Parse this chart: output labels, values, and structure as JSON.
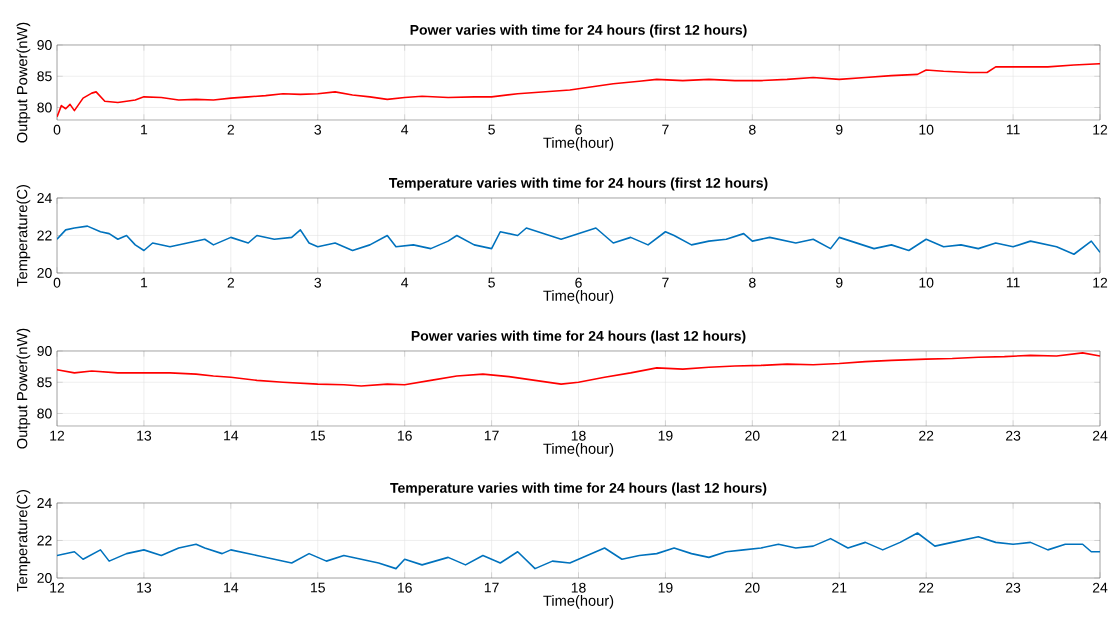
{
  "chart_data": [
    {
      "type": "line",
      "title": "Power varies with time for 24 hours (first 12 hours)",
      "xlabel": "Time(hour)",
      "ylabel": "Output Power(nW)",
      "xlim": [
        0,
        12
      ],
      "xticks": [
        0,
        1,
        2,
        3,
        4,
        5,
        6,
        7,
        8,
        9,
        10,
        11,
        12
      ],
      "ylim": [
        78,
        90
      ],
      "yticks": [
        80,
        85,
        90
      ],
      "grid": true,
      "series": [
        {
          "color": "#ff0000",
          "x": [
            0,
            0.05,
            0.1,
            0.15,
            0.2,
            0.3,
            0.4,
            0.45,
            0.55,
            0.7,
            0.9,
            1.0,
            1.2,
            1.4,
            1.6,
            1.8,
            2.0,
            2.2,
            2.4,
            2.6,
            2.8,
            3.0,
            3.2,
            3.4,
            3.6,
            3.8,
            4.0,
            4.2,
            4.5,
            4.8,
            5.0,
            5.3,
            5.6,
            5.9,
            6.1,
            6.4,
            6.7,
            6.9,
            7.2,
            7.5,
            7.8,
            8.1,
            8.4,
            8.7,
            9.0,
            9.3,
            9.6,
            9.9,
            10.0,
            10.2,
            10.5,
            10.7,
            10.8,
            11.1,
            11.4,
            11.7,
            12.0
          ],
          "values": [
            78.5,
            80.3,
            79.8,
            80.5,
            79.5,
            81.5,
            82.3,
            82.5,
            81,
            80.8,
            81.2,
            81.7,
            81.6,
            81.2,
            81.3,
            81.2,
            81.5,
            81.7,
            81.9,
            82.2,
            82.1,
            82.2,
            82.5,
            82.0,
            81.7,
            81.3,
            81.6,
            81.8,
            81.6,
            81.7,
            81.7,
            82.2,
            82.5,
            82.8,
            83.2,
            83.8,
            84.2,
            84.5,
            84.3,
            84.5,
            84.3,
            84.3,
            84.5,
            84.8,
            84.5,
            84.8,
            85.1,
            85.3,
            86.0,
            85.8,
            85.6,
            85.6,
            86.5,
            86.5,
            86.5,
            86.8,
            87.0
          ]
        }
      ]
    },
    {
      "type": "line",
      "title": "Temperature varies with time for 24 hours (first 12 hours)",
      "xlabel": "Time(hour)",
      "ylabel": "Temperature(C)",
      "xlim": [
        0,
        12
      ],
      "xticks": [
        0,
        1,
        2,
        3,
        4,
        5,
        6,
        7,
        8,
        9,
        10,
        11,
        12
      ],
      "ylim": [
        20,
        24
      ],
      "yticks": [
        20,
        22,
        24
      ],
      "grid": true,
      "series": [
        {
          "color": "#0072bd",
          "x": [
            0,
            0.1,
            0.2,
            0.35,
            0.5,
            0.6,
            0.7,
            0.8,
            0.9,
            1.0,
            1.1,
            1.3,
            1.5,
            1.7,
            1.8,
            2.0,
            2.2,
            2.3,
            2.5,
            2.7,
            2.8,
            2.9,
            3.0,
            3.2,
            3.4,
            3.6,
            3.8,
            3.9,
            4.1,
            4.3,
            4.5,
            4.6,
            4.8,
            5.0,
            5.1,
            5.3,
            5.4,
            5.6,
            5.8,
            6.0,
            6.2,
            6.4,
            6.6,
            6.8,
            7.0,
            7.1,
            7.3,
            7.5,
            7.7,
            7.9,
            8.0,
            8.2,
            8.5,
            8.7,
            8.9,
            9.0,
            9.2,
            9.4,
            9.6,
            9.8,
            10.0,
            10.2,
            10.4,
            10.6,
            10.8,
            11.0,
            11.2,
            11.5,
            11.7,
            11.9,
            12.0
          ],
          "values": [
            21.8,
            22.3,
            22.4,
            22.5,
            22.2,
            22.1,
            21.8,
            22.0,
            21.5,
            21.2,
            21.6,
            21.4,
            21.6,
            21.8,
            21.5,
            21.9,
            21.6,
            22.0,
            21.8,
            21.9,
            22.3,
            21.6,
            21.4,
            21.6,
            21.2,
            21.5,
            22.0,
            21.4,
            21.5,
            21.3,
            21.7,
            22.0,
            21.5,
            21.3,
            22.2,
            22.0,
            22.4,
            22.1,
            21.8,
            22.1,
            22.4,
            21.6,
            21.9,
            21.5,
            22.2,
            22.0,
            21.5,
            21.7,
            21.8,
            22.1,
            21.7,
            21.9,
            21.6,
            21.8,
            21.3,
            21.9,
            21.6,
            21.3,
            21.5,
            21.2,
            21.8,
            21.4,
            21.5,
            21.3,
            21.6,
            21.4,
            21.7,
            21.4,
            21.0,
            21.7,
            21.1
          ]
        }
      ]
    },
    {
      "type": "line",
      "title": "Power varies with time for 24 hours (last 12 hours)",
      "xlabel": "Time(hour)",
      "ylabel": "Output Power(nW)",
      "xlim": [
        12,
        24
      ],
      "xticks": [
        12,
        13,
        14,
        15,
        16,
        17,
        18,
        19,
        20,
        21,
        22,
        23,
        24
      ],
      "ylim": [
        78,
        90
      ],
      "yticks": [
        80,
        85,
        90
      ],
      "grid": true,
      "series": [
        {
          "color": "#ff0000",
          "x": [
            12,
            12.2,
            12.4,
            12.7,
            13.0,
            13.3,
            13.6,
            13.8,
            14.0,
            14.3,
            14.6,
            15.0,
            15.3,
            15.5,
            15.8,
            16.0,
            16.3,
            16.6,
            16.9,
            17.2,
            17.5,
            17.8,
            18.0,
            18.3,
            18.6,
            18.9,
            19.2,
            19.5,
            19.8,
            20.1,
            20.4,
            20.7,
            21.0,
            21.3,
            21.6,
            22.0,
            22.3,
            22.6,
            22.9,
            23.2,
            23.5,
            23.8,
            24.0
          ],
          "values": [
            87.0,
            86.5,
            86.8,
            86.5,
            86.5,
            86.5,
            86.3,
            86.0,
            85.8,
            85.3,
            85.0,
            84.7,
            84.6,
            84.4,
            84.7,
            84.6,
            85.3,
            86.0,
            86.3,
            85.9,
            85.3,
            84.7,
            85.0,
            85.8,
            86.5,
            87.3,
            87.1,
            87.4,
            87.6,
            87.7,
            87.9,
            87.8,
            88.0,
            88.3,
            88.5,
            88.7,
            88.8,
            89.0,
            89.1,
            89.3,
            89.2,
            89.7,
            89.2
          ]
        }
      ]
    },
    {
      "type": "line",
      "title": "Temperature varies with time for 24 hours (last 12 hours)",
      "xlabel": "Time(hour)",
      "ylabel": "Temperature(C)",
      "xlim": [
        12,
        24
      ],
      "xticks": [
        12,
        13,
        14,
        15,
        16,
        17,
        18,
        19,
        20,
        21,
        22,
        23,
        24
      ],
      "ylim": [
        20,
        24
      ],
      "yticks": [
        20,
        22,
        24
      ],
      "grid": true,
      "series": [
        {
          "color": "#0072bd",
          "x": [
            12,
            12.2,
            12.3,
            12.5,
            12.6,
            12.8,
            13.0,
            13.2,
            13.4,
            13.6,
            13.7,
            13.9,
            14.0,
            14.3,
            14.5,
            14.7,
            14.9,
            15.1,
            15.3,
            15.5,
            15.7,
            15.9,
            16.0,
            16.2,
            16.5,
            16.7,
            16.9,
            17.1,
            17.3,
            17.5,
            17.7,
            17.9,
            18.1,
            18.3,
            18.5,
            18.7,
            18.9,
            19.1,
            19.3,
            19.5,
            19.7,
            19.9,
            20.1,
            20.3,
            20.5,
            20.7,
            20.9,
            21.1,
            21.3,
            21.5,
            21.7,
            21.9,
            22.1,
            22.3,
            22.6,
            22.8,
            23.0,
            23.2,
            23.4,
            23.6,
            23.8,
            23.9,
            24.0
          ],
          "values": [
            21.2,
            21.4,
            21.0,
            21.5,
            20.9,
            21.3,
            21.5,
            21.2,
            21.6,
            21.8,
            21.6,
            21.3,
            21.5,
            21.2,
            21.0,
            20.8,
            21.3,
            20.9,
            21.2,
            21.0,
            20.8,
            20.5,
            21.0,
            20.7,
            21.1,
            20.7,
            21.2,
            20.8,
            21.4,
            20.5,
            20.9,
            20.8,
            21.2,
            21.6,
            21.0,
            21.2,
            21.3,
            21.6,
            21.3,
            21.1,
            21.4,
            21.5,
            21.6,
            21.8,
            21.6,
            21.7,
            22.1,
            21.6,
            21.9,
            21.5,
            21.9,
            22.4,
            21.7,
            21.9,
            22.2,
            21.9,
            21.8,
            21.9,
            21.5,
            21.8,
            21.8,
            21.4,
            21.4
          ]
        }
      ]
    }
  ]
}
